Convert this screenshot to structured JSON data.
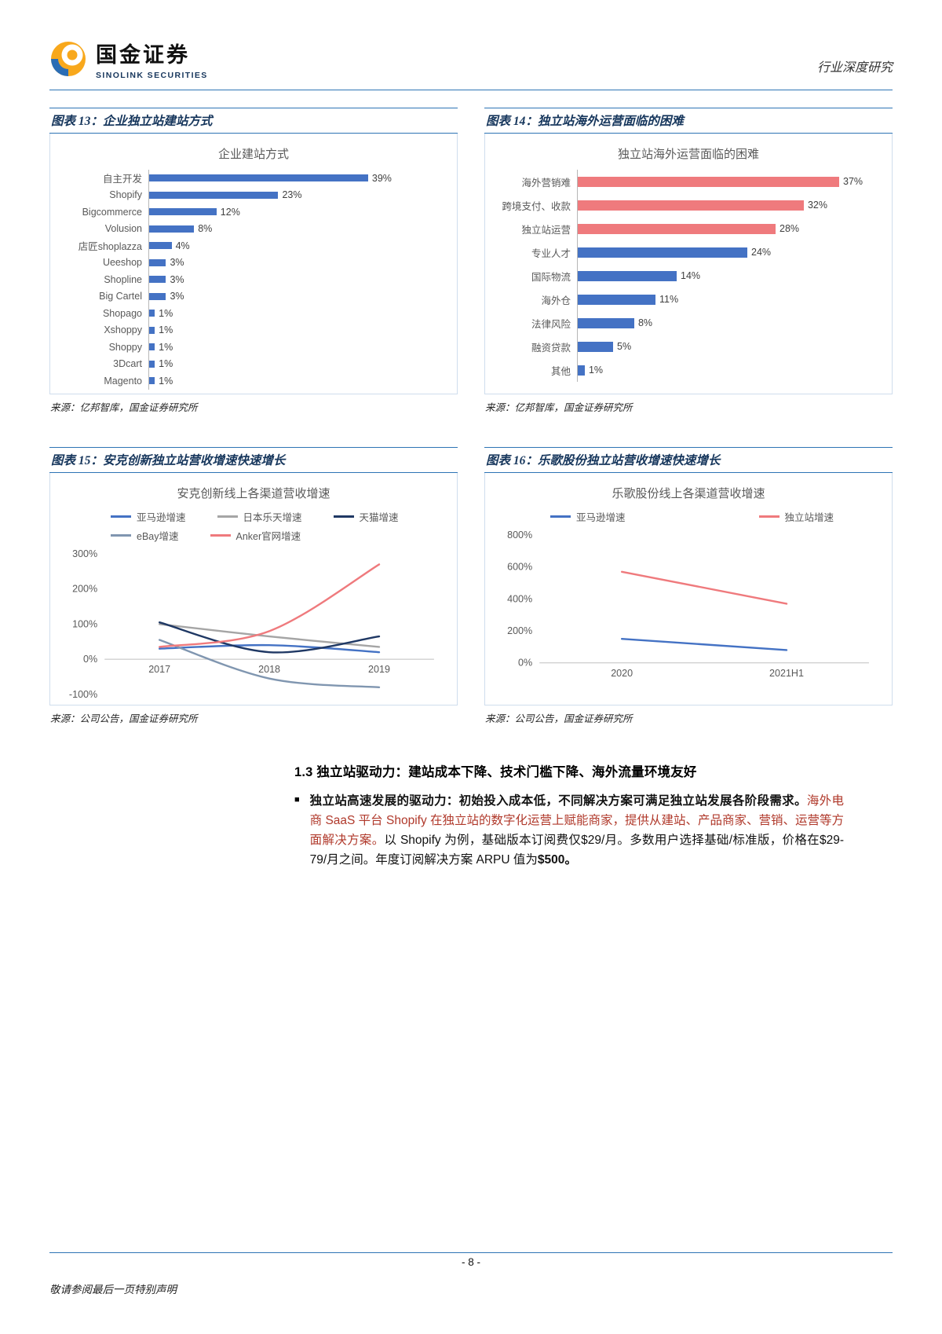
{
  "header": {
    "brand_cn": "国金证券",
    "brand_en": "SINOLINK SECURITIES",
    "doc_type": "行业深度研究"
  },
  "figures": [
    {
      "caption": "图表 13：企业独立站建站方式",
      "source": "来源：亿邦智库，国金证券研究所"
    },
    {
      "caption": "图表 14：独立站海外运营面临的困难",
      "source": "来源：亿邦智库，国金证券研究所"
    },
    {
      "caption": "图表 15：安克创新独立站营收增速快速增长",
      "source": "来源：公司公告，国金证券研究所"
    },
    {
      "caption": "图表 16：乐歌股份独立站营收增速快速增长",
      "source": "来源：公司公告，国金证券研究所"
    }
  ],
  "chart_data": [
    {
      "type": "bar",
      "orientation": "horizontal",
      "title": "企业建站方式",
      "categories": [
        "自主开发",
        "Shopify",
        "Bigcommerce",
        "Volusion",
        "店匠shoplazza",
        "Ueeshop",
        "Shopline",
        "Big Cartel",
        "Shopago",
        "Xshoppy",
        "Shoppy",
        "3Dcart",
        "Magento"
      ],
      "values": [
        39,
        23,
        12,
        8,
        4,
        3,
        3,
        3,
        1,
        1,
        1,
        1,
        1
      ],
      "unit": "%",
      "xlim": [
        0,
        53
      ],
      "bar_color": "#4472c4"
    },
    {
      "type": "bar",
      "orientation": "horizontal",
      "title": "独立站海外运营面临的困难",
      "categories": [
        "海外营销难",
        "跨境支付、收款",
        "独立站运营",
        "专业人才",
        "国际物流",
        "海外仓",
        "法律风险",
        "融资贷款",
        "其他"
      ],
      "values": [
        37,
        32,
        28,
        24,
        14,
        11,
        8,
        5,
        1
      ],
      "unit": "%",
      "xlim": [
        0,
        43
      ],
      "bar_colors": [
        "#ef7a7d",
        "#ef7a7d",
        "#ef7a7d",
        "#4472c4",
        "#4472c4",
        "#4472c4",
        "#4472c4",
        "#4472c4",
        "#4472c4"
      ]
    },
    {
      "type": "line",
      "title": "安克创新线上各渠道营收增速",
      "x": [
        "2017",
        "2018",
        "2019"
      ],
      "series": [
        {
          "name": "亚马逊增速",
          "color": "#4472c4",
          "values": [
            30,
            40,
            20
          ]
        },
        {
          "name": "日本乐天增速",
          "color": "#a5a5a5",
          "values": [
            100,
            65,
            35
          ]
        },
        {
          "name": "天猫增速",
          "color": "#1f3864",
          "values": [
            105,
            20,
            65
          ]
        },
        {
          "name": "eBay增速",
          "color": "#8096b0",
          "values": [
            55,
            -55,
            -80
          ]
        },
        {
          "name": "Anker官网增速",
          "color": "#ef7a7d",
          "values": [
            35,
            80,
            270
          ]
        }
      ],
      "unit": "%",
      "ylim": [
        -100,
        300
      ],
      "yticks": [
        300,
        200,
        100,
        0,
        -100
      ],
      "legend_rows": [
        [
          0,
          1,
          2
        ],
        [
          3,
          4
        ]
      ],
      "legend_position": "top-left",
      "grid": false
    },
    {
      "type": "line",
      "title": "乐歌股份线上各渠道营收增速",
      "x": [
        "2020",
        "2021H1"
      ],
      "series": [
        {
          "name": "亚马逊增速",
          "color": "#4472c4",
          "values": [
            150,
            80
          ]
        },
        {
          "name": "独立站增速",
          "color": "#ef7a7d",
          "values": [
            570,
            370
          ]
        }
      ],
      "unit": "%",
      "ylim": [
        0,
        800
      ],
      "yticks": [
        800,
        600,
        400,
        200,
        0
      ],
      "legend_rows": [
        [
          0,
          1
        ]
      ],
      "legend_position": "top",
      "grid": false
    }
  ],
  "section": {
    "heading": "1.3 独立站驱动力：建站成本下降、技术门槛下降、海外流量环境友好",
    "bullet_marker": "■",
    "paragraph": [
      {
        "text": "独立站高速发展的驱动力：初始投入成本低，不同解决方案可满足独立站发展各阶段需求。",
        "style": "bold"
      },
      {
        "text": "海外电商 SaaS 平台 Shopify 在独立站的数字化运营上赋能商家，提供从建站、产品商家、营销、运营等方面解决方案。",
        "style": "red"
      },
      {
        "text": "以 Shopify 为例，基础版本订阅费仅$29/月。多数用户选择基础/标准版，价格在$29-79/月之间。年度订阅解决方案 ARPU 值为",
        "style": "regular"
      },
      {
        "text": "$500。",
        "style": "bold"
      }
    ]
  },
  "footer": {
    "page": "- 8 -",
    "disclaimer": "敬请参阅最后一页特别声明"
  },
  "colors": {
    "accent_blue": "#2e74b5",
    "bar_blue": "#4472c4",
    "bar_red": "#ef7a7d",
    "title_navy": "#16365c"
  }
}
